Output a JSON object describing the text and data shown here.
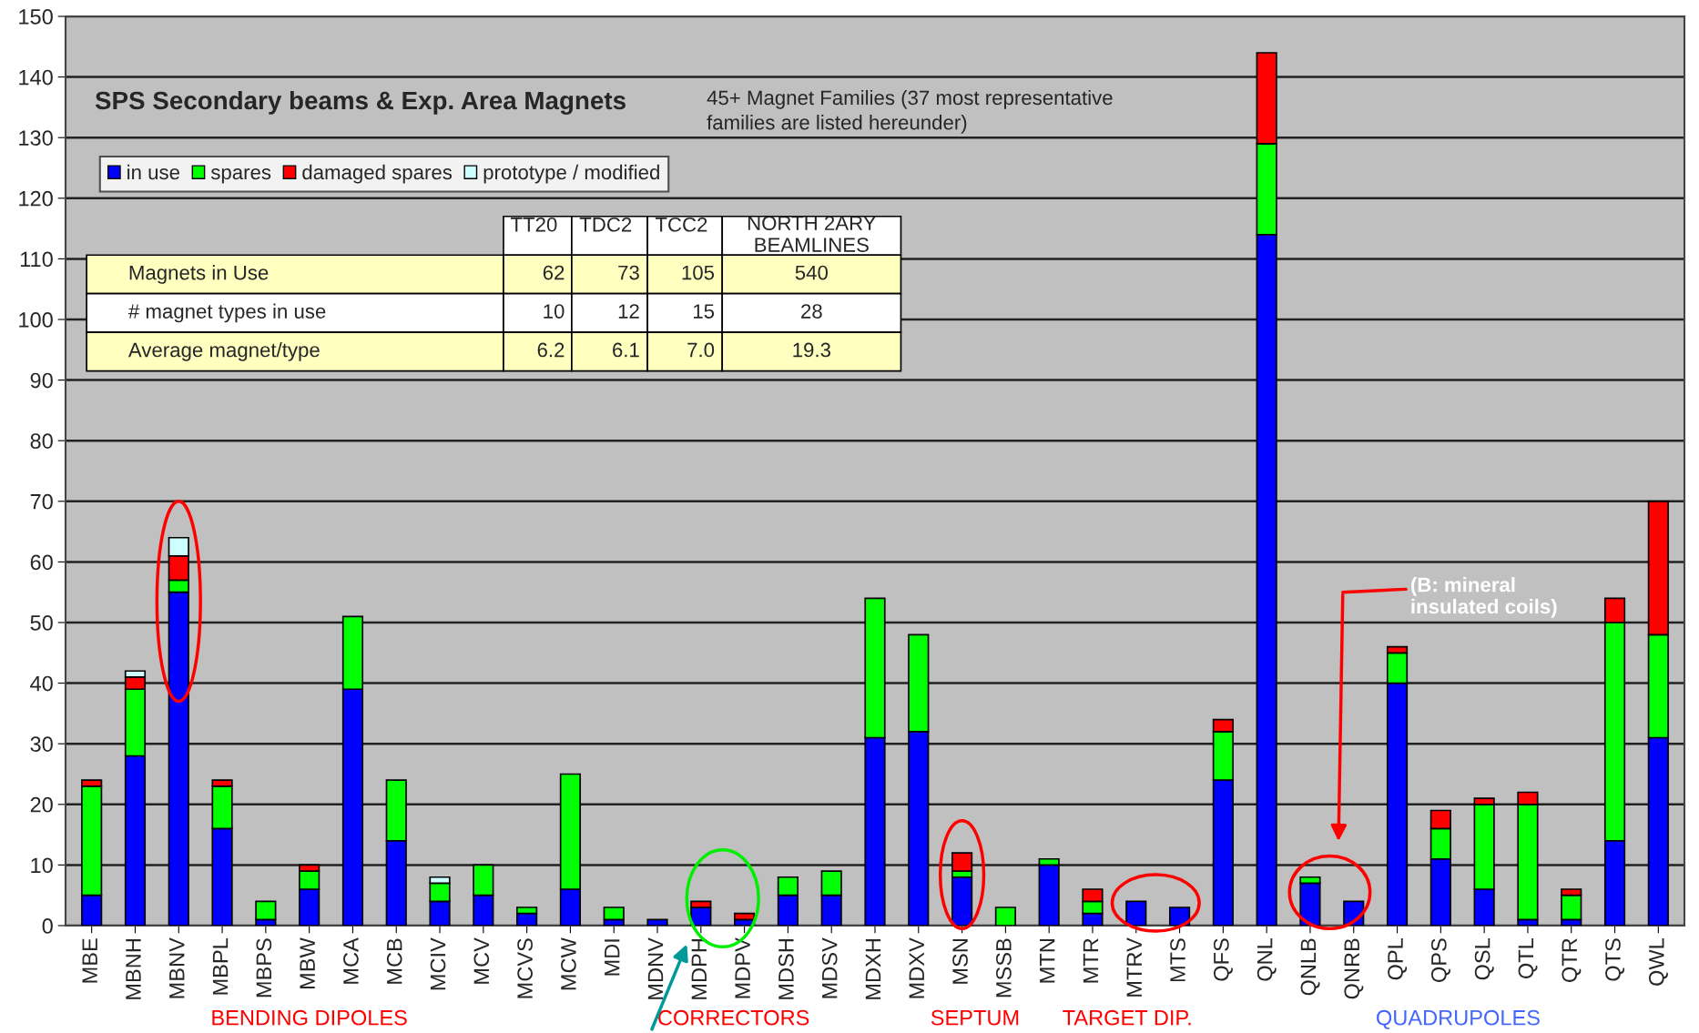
{
  "chart_data": {
    "type": "bar",
    "stacked": true,
    "title": "SPS Secondary beams & Exp. Area Magnets",
    "categories": [
      "MBE",
      "MBNH",
      "MBNV",
      "MBPL",
      "MBPS",
      "MBW",
      "MCA",
      "MCB",
      "MCIV",
      "MCV",
      "MCVS",
      "MCW",
      "MDI",
      "MDNV",
      "MDPH",
      "MDPV",
      "MDSH",
      "MDSV",
      "MDXH",
      "MDXV",
      "MSN",
      "MSSB",
      "MTN",
      "MTR",
      "MTRV",
      "MTS",
      "QFS",
      "QNL",
      "QNLB",
      "QNRB",
      "QPL",
      "QPS",
      "QSL",
      "QTL",
      "QTR",
      "QTS",
      "QWL"
    ],
    "series": [
      {
        "name": "in use",
        "color": "#0000ff",
        "values": [
          5,
          28,
          55,
          16,
          1,
          6,
          39,
          14,
          4,
          5,
          2,
          6,
          1,
          1,
          3,
          1,
          5,
          5,
          31,
          32,
          8,
          0,
          10,
          2,
          4,
          3,
          24,
          114,
          7,
          4,
          40,
          11,
          6,
          1,
          1,
          14,
          31
        ]
      },
      {
        "name": "spares",
        "color": "#00ff00",
        "values": [
          18,
          11,
          2,
          7,
          3,
          3,
          12,
          10,
          3,
          5,
          1,
          19,
          2,
          0,
          0,
          0,
          3,
          4,
          23,
          16,
          1,
          3,
          1,
          2,
          0,
          0,
          8,
          15,
          1,
          0,
          5,
          5,
          14,
          19,
          4,
          36,
          17
        ]
      },
      {
        "name": "damaged spares",
        "color": "#ff0000",
        "values": [
          1,
          2,
          4,
          1,
          0,
          1,
          0,
          0,
          0,
          0,
          0,
          0,
          0,
          0,
          1,
          1,
          0,
          0,
          0,
          0,
          3,
          0,
          0,
          2,
          0,
          0,
          2,
          15,
          0,
          0,
          1,
          3,
          1,
          2,
          1,
          4,
          22
        ]
      },
      {
        "name": "prototype / modified",
        "color": "#ccffff",
        "values": [
          0,
          1,
          3,
          0,
          0,
          0,
          0,
          0,
          1,
          0,
          0,
          0,
          0,
          0,
          0,
          0,
          0,
          0,
          0,
          0,
          0,
          0,
          0,
          0,
          0,
          0,
          0,
          0,
          0,
          0,
          0,
          0,
          0,
          0,
          0,
          0,
          0
        ]
      }
    ],
    "ylim": [
      0,
      150
    ],
    "yticks": [
      0,
      10,
      20,
      30,
      40,
      50,
      60,
      70,
      80,
      90,
      100,
      110,
      120,
      130,
      140,
      150
    ],
    "grid": "y",
    "legend": "top left",
    "annotations": [
      "45+ Magnet Families (37 most representative\nfamilies are listed hereunder)",
      "(B: mineral\ninsulated coils)",
      "BENDING DIPOLES",
      "CORRECTORS",
      "SEPTUM",
      "TARGET DIP.",
      "QUADRUPOLES",
      "TT20",
      "TDC2",
      "TCC2",
      "NORTH 2ARY\nBEAMLINES",
      "Magnets in Use",
      "62",
      "73",
      "105",
      "540",
      "# magnet types in use",
      "10",
      "12",
      "15",
      "28",
      "Average magnet/type",
      "6.2",
      "6.1",
      "7.0",
      "19.3"
    ]
  }
}
